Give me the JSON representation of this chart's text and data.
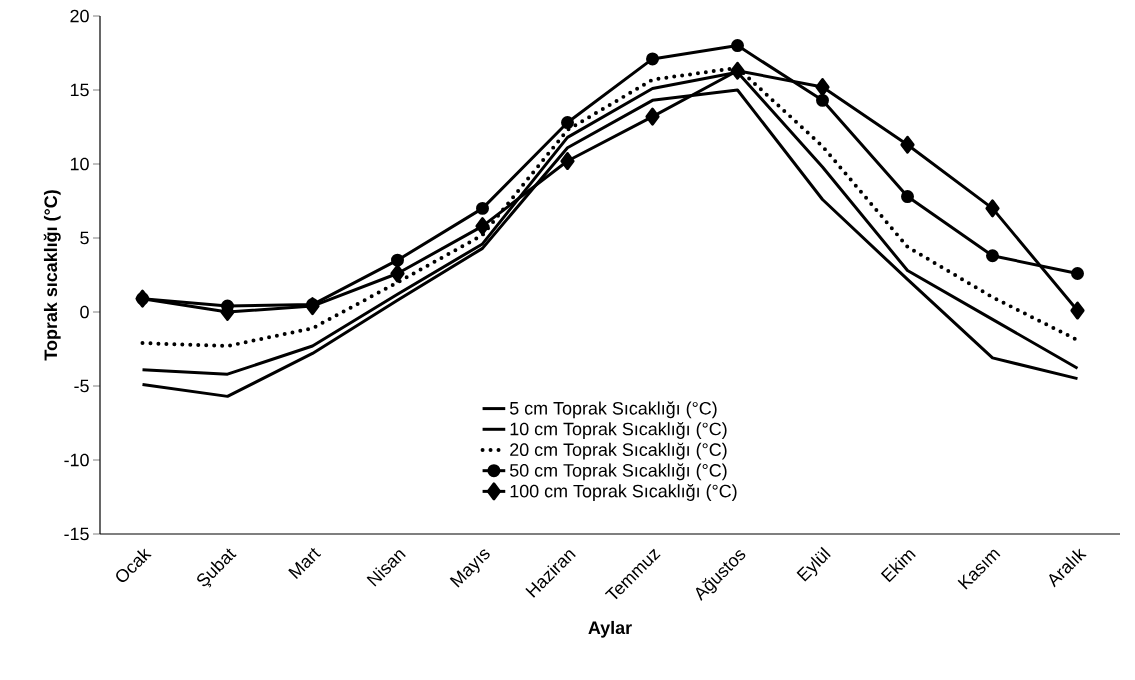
{
  "chart_data": {
    "type": "line",
    "xlabel": "Aylar",
    "ylabel": "Toprak sıcaklığı  (°C)",
    "categories": [
      "Ocak",
      "Şubat",
      "Mart",
      "Nisan",
      "Mayıs",
      "Haziran",
      "Temmuz",
      "Ağustos",
      "Eylül",
      "Ekim",
      "Kasım",
      "Aralık"
    ],
    "series": [
      {
        "name": "5 cm Toprak Sıcaklığı (°C)",
        "color": "#000000",
        "line_style": "solid",
        "marker": "none",
        "values": [
          -4.9,
          -5.7,
          -2.8,
          0.8,
          4.3,
          11.1,
          14.3,
          15.0,
          7.6,
          2.2,
          -3.1,
          -4.5
        ]
      },
      {
        "name": "10 cm Toprak Sıcaklığı (°C)",
        "color": "#000000",
        "line_style": "solid",
        "marker": "none",
        "values": [
          -3.9,
          -4.2,
          -2.3,
          1.2,
          4.6,
          11.8,
          15.1,
          16.2,
          9.8,
          2.8,
          -0.5,
          -3.8
        ]
      },
      {
        "name": "20 cm Toprak Sıcaklığı (°C)",
        "color": "#000000",
        "line_style": "dotted",
        "marker": "none",
        "values": [
          -2.1,
          -2.3,
          -1.1,
          2.0,
          5.2,
          12.3,
          15.7,
          16.5,
          11.2,
          4.4,
          1.0,
          -1.9
        ]
      },
      {
        "name": "50 cm Toprak Sıcaklığı (°C)",
        "color": "#000000",
        "line_style": "solid",
        "marker": "circle",
        "values": [
          0.9,
          0.4,
          0.5,
          3.5,
          7.0,
          12.8,
          17.1,
          18.0,
          14.3,
          7.8,
          3.8,
          2.6
        ]
      },
      {
        "name": "100 cm Toprak Sıcaklığı (°C)",
        "color": "#000000",
        "line_style": "solid",
        "marker": "diamond",
        "values": [
          0.9,
          0.0,
          0.4,
          2.6,
          5.8,
          10.2,
          13.2,
          16.3,
          15.2,
          11.3,
          7.0,
          0.1
        ]
      }
    ],
    "ylim": [
      -15,
      20
    ],
    "yticks": [
      -15,
      -10,
      -5,
      0,
      5,
      10,
      15,
      20
    ],
    "grid": false,
    "legend": "bottom right"
  }
}
